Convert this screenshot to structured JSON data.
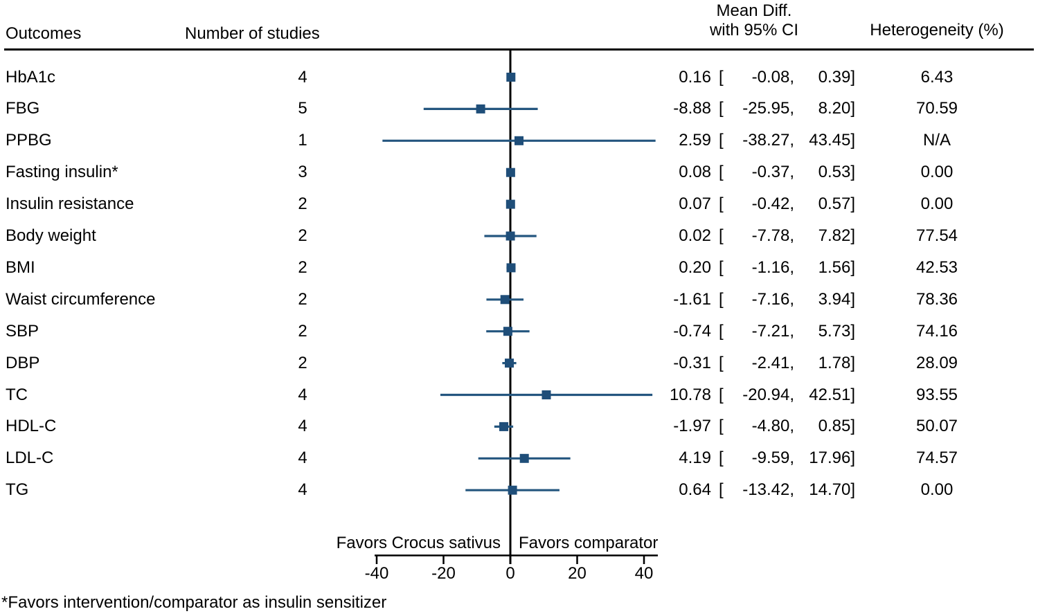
{
  "header": {
    "outcomes": "Outcomes",
    "n_studies": "Number of studies",
    "mean_diff_line1": "Mean Diff.",
    "mean_diff_line2": "with 95% CI",
    "heterogeneity": "Heterogeneity (%)"
  },
  "footnote": "*Favors intervention/comparator as insulin sensitizer",
  "chart_data": {
    "type": "forest",
    "favors_left": "Favors Crocus sativus",
    "favors_right": "Favors comparator",
    "x_axis": {
      "ticks": [
        -40,
        -20,
        0,
        20,
        40
      ],
      "xlim": [
        -41,
        44
      ],
      "zero_line": 0
    },
    "colors": {
      "marker": "#1f4e79",
      "ci_line": "#24567f",
      "axis": "#000000"
    },
    "columns": {
      "outcome": "Outcomes",
      "n_studies": "Number of studies",
      "mean_ci": "Mean Diff. with 95% CI",
      "heterogeneity": "Heterogeneity (%)"
    },
    "rows": [
      {
        "outcome": "HbA1c",
        "n_studies": 4,
        "mean": 0.16,
        "ci_low": -0.08,
        "ci_high": 0.39,
        "heterogeneity": 6.43
      },
      {
        "outcome": "FBG",
        "n_studies": 5,
        "mean": -8.88,
        "ci_low": -25.95,
        "ci_high": 8.2,
        "heterogeneity": 70.59
      },
      {
        "outcome": "PPBG",
        "n_studies": 1,
        "mean": 2.59,
        "ci_low": -38.27,
        "ci_high": 43.45,
        "heterogeneity": "N/A"
      },
      {
        "outcome": "Fasting insulin*",
        "n_studies": 3,
        "mean": 0.08,
        "ci_low": -0.37,
        "ci_high": 0.53,
        "heterogeneity": 0.0
      },
      {
        "outcome": "Insulin resistance",
        "n_studies": 2,
        "mean": 0.07,
        "ci_low": -0.42,
        "ci_high": 0.57,
        "heterogeneity": 0.0
      },
      {
        "outcome": "Body weight",
        "n_studies": 2,
        "mean": 0.02,
        "ci_low": -7.78,
        "ci_high": 7.82,
        "heterogeneity": 77.54
      },
      {
        "outcome": "BMI",
        "n_studies": 2,
        "mean": 0.2,
        "ci_low": -1.16,
        "ci_high": 1.56,
        "heterogeneity": 42.53
      },
      {
        "outcome": "Waist circumference",
        "n_studies": 2,
        "mean": -1.61,
        "ci_low": -7.16,
        "ci_high": 3.94,
        "heterogeneity": 78.36
      },
      {
        "outcome": "SBP",
        "n_studies": 2,
        "mean": -0.74,
        "ci_low": -7.21,
        "ci_high": 5.73,
        "heterogeneity": 74.16
      },
      {
        "outcome": "DBP",
        "n_studies": 2,
        "mean": -0.31,
        "ci_low": -2.41,
        "ci_high": 1.78,
        "heterogeneity": 28.09
      },
      {
        "outcome": "TC",
        "n_studies": 4,
        "mean": 10.78,
        "ci_low": -20.94,
        "ci_high": 42.51,
        "heterogeneity": 93.55
      },
      {
        "outcome": "HDL-C",
        "n_studies": 4,
        "mean": -1.97,
        "ci_low": -4.8,
        "ci_high": 0.85,
        "heterogeneity": 50.07
      },
      {
        "outcome": "LDL-C",
        "n_studies": 4,
        "mean": 4.19,
        "ci_low": -9.59,
        "ci_high": 17.96,
        "heterogeneity": 74.57
      },
      {
        "outcome": "TG",
        "n_studies": 4,
        "mean": 0.64,
        "ci_low": -13.42,
        "ci_high": 14.7,
        "heterogeneity": 0.0
      }
    ]
  }
}
